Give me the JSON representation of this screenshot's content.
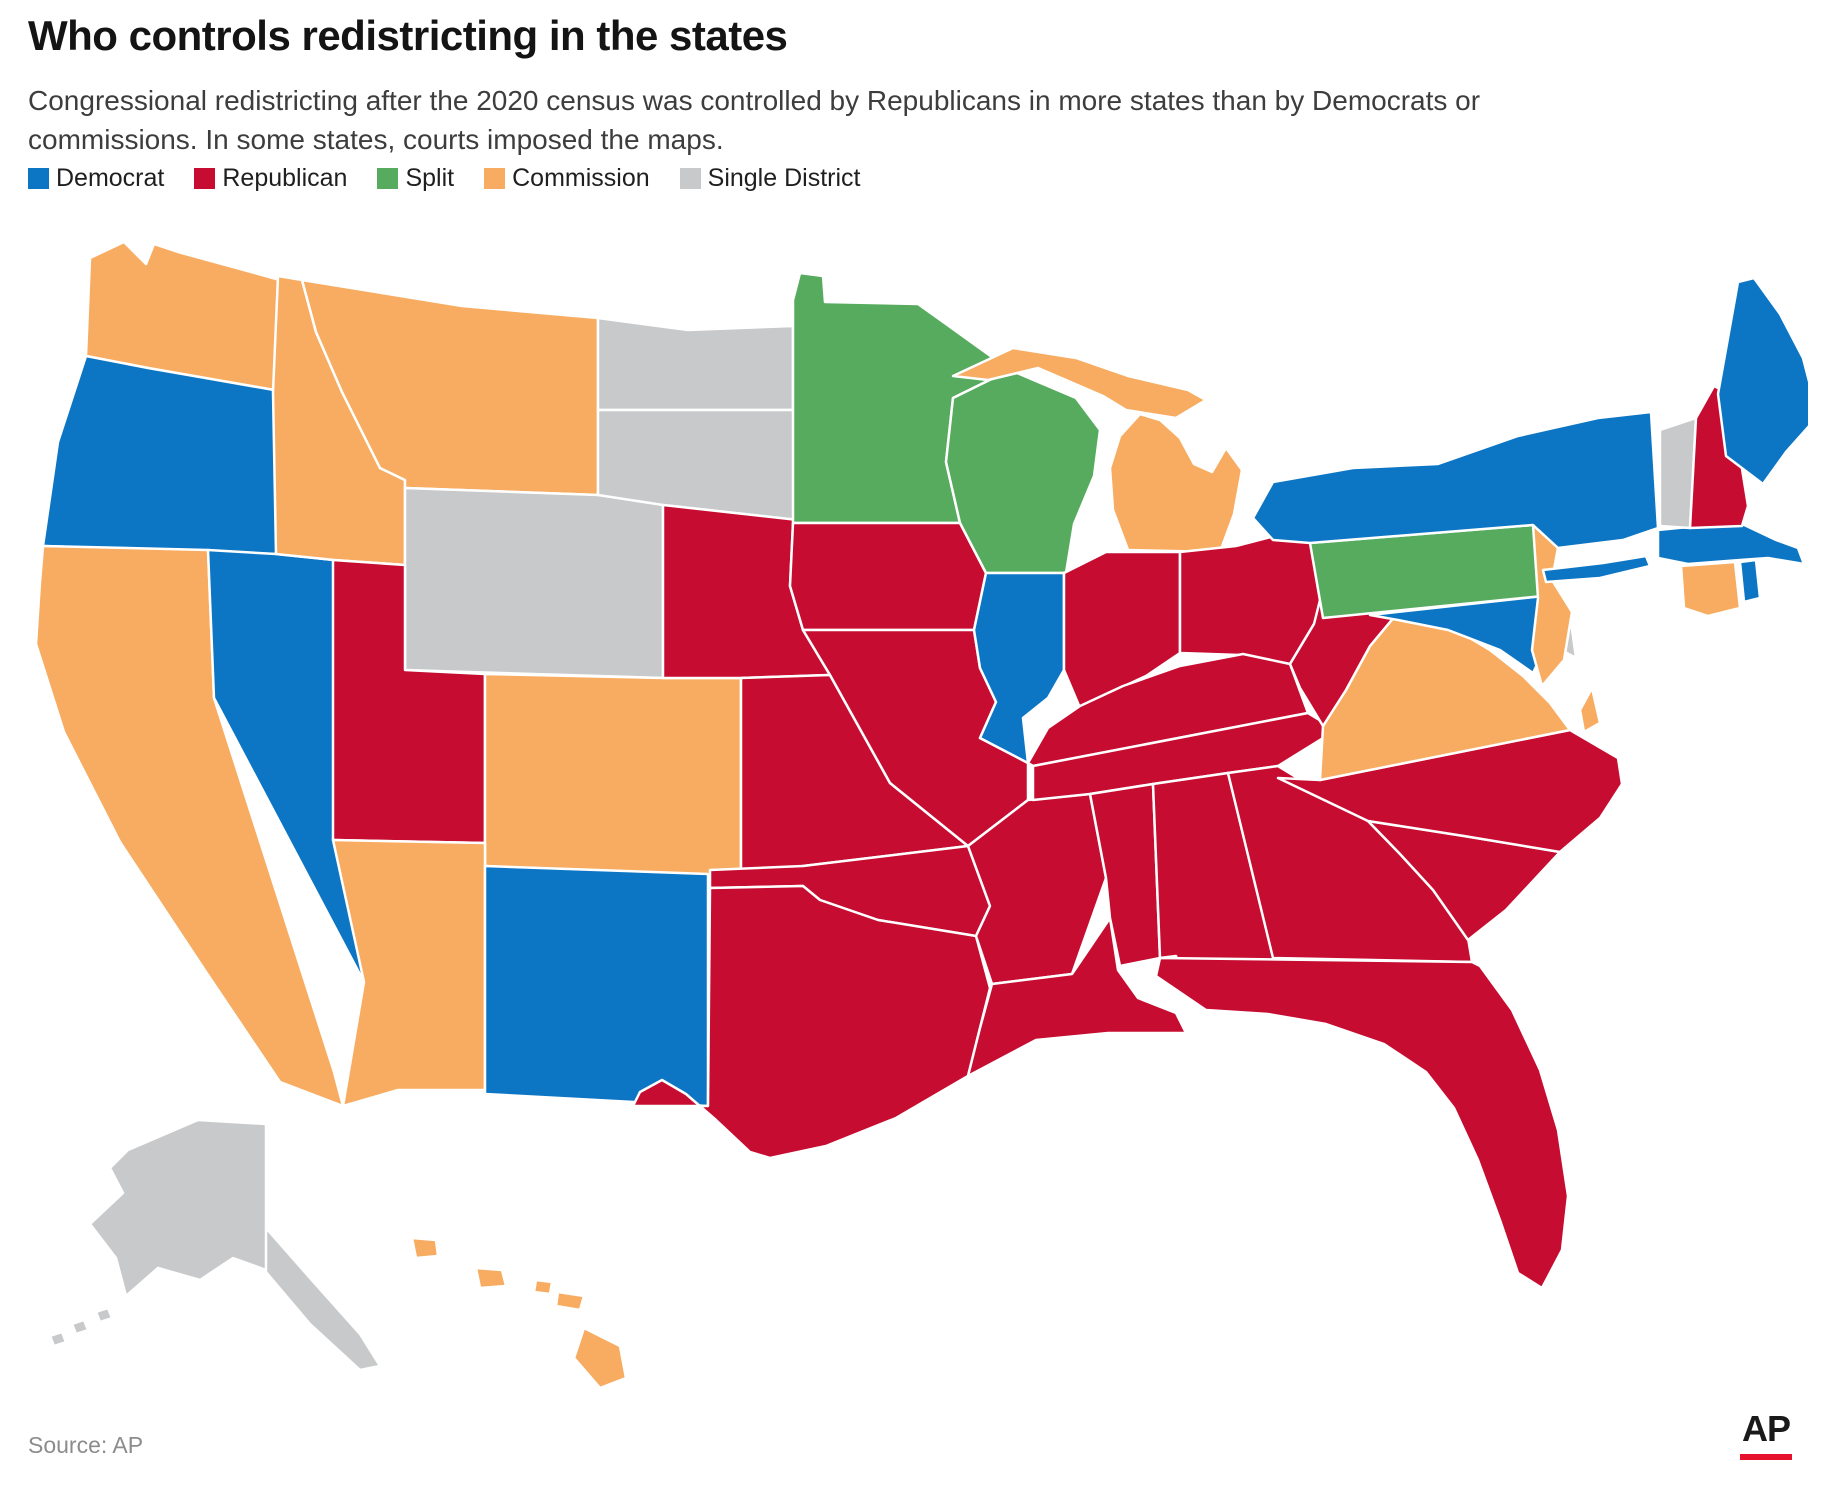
{
  "title": "Who controls redistricting in the states",
  "subtitle": "Congressional redistricting after the 2020 census was controlled by Republicans in more states than by Democrats or commissions. In some states, courts imposed the maps.",
  "legend": [
    {
      "id": "democrat",
      "label": "Democrat",
      "color": "#0d76c4"
    },
    {
      "id": "republican",
      "label": "Republican",
      "color": "#c60c30"
    },
    {
      "id": "split",
      "label": "Split",
      "color": "#57ab5f"
    },
    {
      "id": "commission",
      "label": "Commission",
      "color": "#f7ac61"
    },
    {
      "id": "single",
      "label": "Single District",
      "color": "#c8c9ca"
    }
  ],
  "map": {
    "states": [
      {
        "abbr": "WA",
        "name": "Washington",
        "control": "commission"
      },
      {
        "abbr": "OR",
        "name": "Oregon",
        "control": "democrat"
      },
      {
        "abbr": "CA",
        "name": "California",
        "control": "commission"
      },
      {
        "abbr": "NV",
        "name": "Nevada",
        "control": "democrat"
      },
      {
        "abbr": "ID",
        "name": "Idaho",
        "control": "commission"
      },
      {
        "abbr": "MT",
        "name": "Montana",
        "control": "commission"
      },
      {
        "abbr": "WY",
        "name": "Wyoming",
        "control": "single"
      },
      {
        "abbr": "UT",
        "name": "Utah",
        "control": "republican"
      },
      {
        "abbr": "CO",
        "name": "Colorado",
        "control": "commission"
      },
      {
        "abbr": "AZ",
        "name": "Arizona",
        "control": "commission"
      },
      {
        "abbr": "NM",
        "name": "New Mexico",
        "control": "democrat"
      },
      {
        "abbr": "ND",
        "name": "North Dakota",
        "control": "single"
      },
      {
        "abbr": "SD",
        "name": "South Dakota",
        "control": "single"
      },
      {
        "abbr": "NE",
        "name": "Nebraska",
        "control": "republican"
      },
      {
        "abbr": "KS",
        "name": "Kansas",
        "control": "republican"
      },
      {
        "abbr": "OK",
        "name": "Oklahoma",
        "control": "republican"
      },
      {
        "abbr": "TX",
        "name": "Texas",
        "control": "republican"
      },
      {
        "abbr": "MN",
        "name": "Minnesota",
        "control": "split"
      },
      {
        "abbr": "IA",
        "name": "Iowa",
        "control": "republican"
      },
      {
        "abbr": "MO",
        "name": "Missouri",
        "control": "republican"
      },
      {
        "abbr": "AR",
        "name": "Arkansas",
        "control": "republican"
      },
      {
        "abbr": "LA",
        "name": "Louisiana",
        "control": "republican"
      },
      {
        "abbr": "WI",
        "name": "Wisconsin",
        "control": "split"
      },
      {
        "abbr": "IL",
        "name": "Illinois",
        "control": "democrat"
      },
      {
        "abbr": "MI",
        "name": "Michigan",
        "control": "commission"
      },
      {
        "abbr": "IN",
        "name": "Indiana",
        "control": "republican"
      },
      {
        "abbr": "OH",
        "name": "Ohio",
        "control": "republican"
      },
      {
        "abbr": "KY",
        "name": "Kentucky",
        "control": "republican"
      },
      {
        "abbr": "TN",
        "name": "Tennessee",
        "control": "republican"
      },
      {
        "abbr": "MS",
        "name": "Mississippi",
        "control": "republican"
      },
      {
        "abbr": "AL",
        "name": "Alabama",
        "control": "republican"
      },
      {
        "abbr": "GA",
        "name": "Georgia",
        "control": "republican"
      },
      {
        "abbr": "FL",
        "name": "Florida",
        "control": "republican"
      },
      {
        "abbr": "SC",
        "name": "South Carolina",
        "control": "republican"
      },
      {
        "abbr": "NC",
        "name": "North Carolina",
        "control": "republican"
      },
      {
        "abbr": "VA",
        "name": "Virginia",
        "control": "commission"
      },
      {
        "abbr": "WV",
        "name": "West Virginia",
        "control": "republican"
      },
      {
        "abbr": "MD",
        "name": "Maryland",
        "control": "democrat"
      },
      {
        "abbr": "DE",
        "name": "Delaware",
        "control": "single"
      },
      {
        "abbr": "PA",
        "name": "Pennsylvania",
        "control": "split"
      },
      {
        "abbr": "NJ",
        "name": "New Jersey",
        "control": "commission"
      },
      {
        "abbr": "NY",
        "name": "New York",
        "control": "democrat"
      },
      {
        "abbr": "CT",
        "name": "Connecticut",
        "control": "commission"
      },
      {
        "abbr": "RI",
        "name": "Rhode Island",
        "control": "democrat"
      },
      {
        "abbr": "MA",
        "name": "Massachusetts",
        "control": "democrat"
      },
      {
        "abbr": "VT",
        "name": "Vermont",
        "control": "single"
      },
      {
        "abbr": "NH",
        "name": "New Hampshire",
        "control": "republican"
      },
      {
        "abbr": "ME",
        "name": "Maine",
        "control": "democrat"
      },
      {
        "abbr": "AK",
        "name": "Alaska",
        "control": "single"
      },
      {
        "abbr": "HI",
        "name": "Hawaii",
        "control": "commission"
      }
    ]
  },
  "source": "Source: AP",
  "ap_logo": "AP"
}
